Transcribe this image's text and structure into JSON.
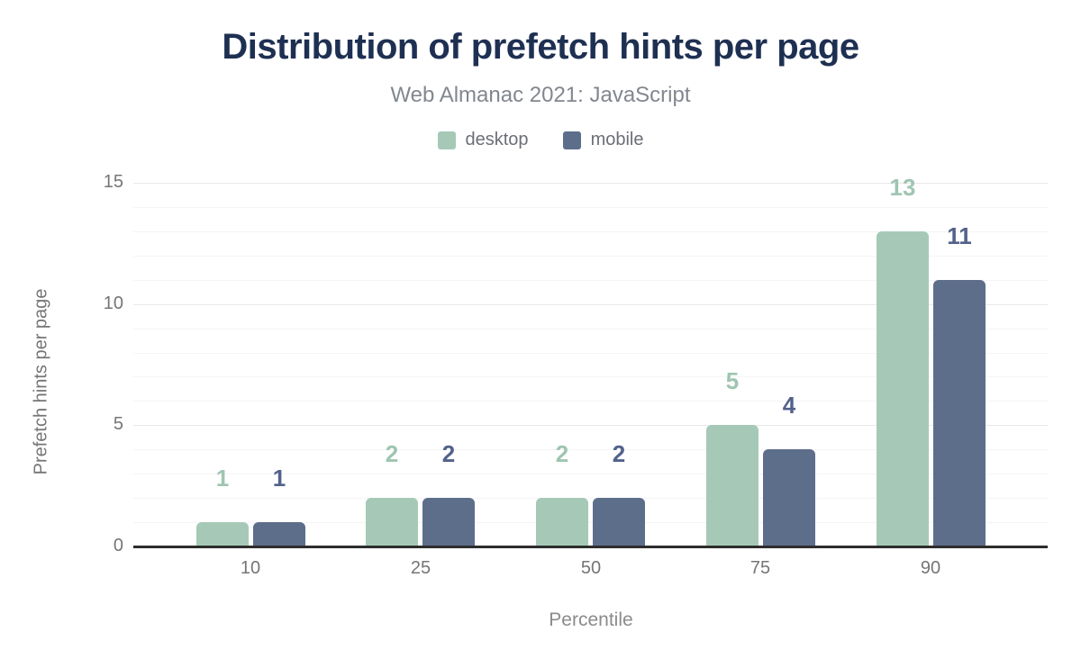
{
  "chart": {
    "title": "Distribution of prefetch hints per page",
    "subtitle": "Web Almanac 2021: JavaScript"
  },
  "chart_data": {
    "type": "bar",
    "title": "Distribution of prefetch hints per page",
    "subtitle": "Web Almanac 2021: JavaScript",
    "categories": [
      "10",
      "25",
      "50",
      "75",
      "90"
    ],
    "series": [
      {
        "name": "desktop",
        "color": "#a6c9b7",
        "label_color": "#9fc5b1",
        "values": [
          1,
          2,
          2,
          5,
          13
        ]
      },
      {
        "name": "mobile",
        "color": "#5d6e8b",
        "label_color": "#52628a",
        "values": [
          1,
          2,
          2,
          4,
          11
        ]
      }
    ],
    "xlabel": "Percentile",
    "ylabel": "Prefetch hints per page",
    "ylim": [
      0,
      15
    ],
    "yticks": [
      0,
      5,
      10,
      15
    ],
    "minor_grid_step": 1,
    "grid": "horizontal",
    "legend_position": "top",
    "value_labels": "above bars"
  },
  "colors": {
    "title": "#1e3052",
    "subtitle": "#82878f",
    "tick_text": "#757575",
    "axis_line": "#2d2d2d",
    "major_grid": "#e8e8e8",
    "minor_grid": "#f4f4f4"
  }
}
